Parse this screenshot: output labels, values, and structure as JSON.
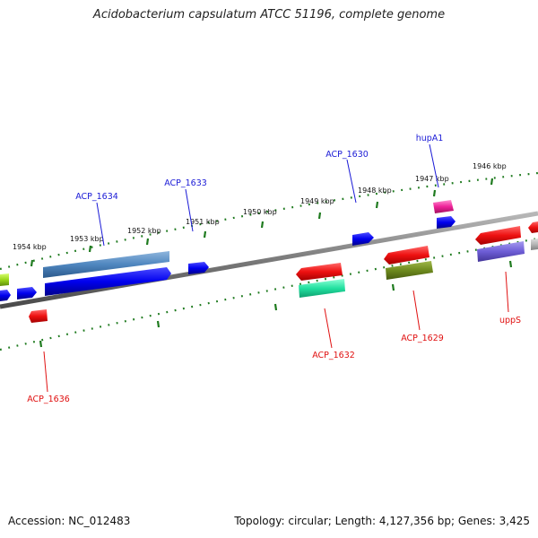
{
  "title": "Acidobacterium capsulatum ATCC 51196, complete genome",
  "footer": {
    "accession": "Accession: NC_012483",
    "summary": "Topology: circular; Length: 4,127,356 bp; Genes: 3,425"
  },
  "ticks": [
    "1954 kbp",
    "1953 kbp",
    "1952 kbp",
    "1951 kbp",
    "1950 kbp",
    "1949 kbp",
    "1948 kbp",
    "1947 kbp",
    "1946 kbp"
  ],
  "labels": {
    "acp1634": "ACP_1634",
    "acp1633": "ACP_1633",
    "acp1630": "ACP_1630",
    "hupA1": "hupA1",
    "acp1636": "ACP_1636",
    "acp1632": "ACP_1632",
    "acp1629": "ACP_1629",
    "uppS": "uppS"
  },
  "colors": {
    "forward_label": "#1a1ad6",
    "reverse_label": "#e01010",
    "tick": "#1e7a1e",
    "backbone": "#7a7a7a"
  }
}
